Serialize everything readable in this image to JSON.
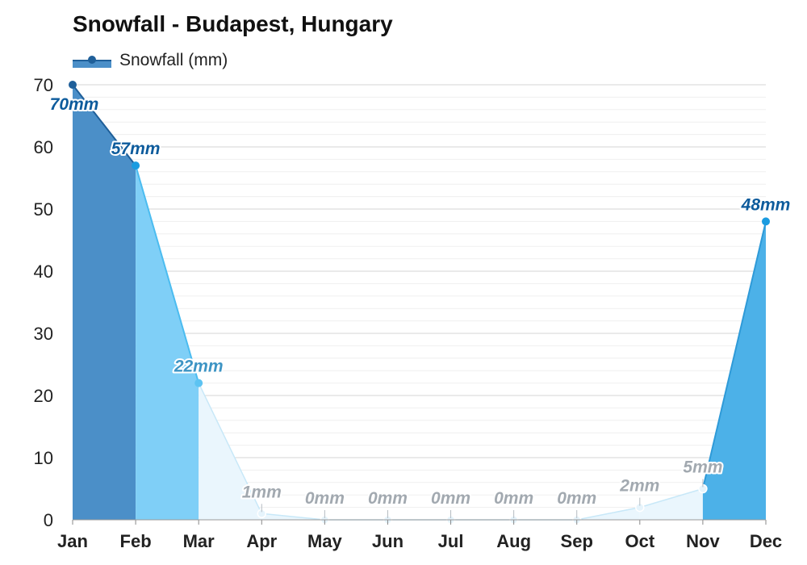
{
  "chart_data": {
    "type": "area",
    "title": "Snowfall - Budapest, Hungary",
    "categories": [
      "Jan",
      "Feb",
      "Mar",
      "Apr",
      "May",
      "Jun",
      "Jul",
      "Aug",
      "Sep",
      "Oct",
      "Nov",
      "Dec"
    ],
    "series": [
      {
        "name": "Snowfall (mm)",
        "values": [
          70,
          57,
          22,
          1,
          0,
          0,
          0,
          0,
          0,
          2,
          5,
          48
        ],
        "labels": [
          "70mm",
          "57mm",
          "22mm",
          "1mm",
          "0mm",
          "0mm",
          "0mm",
          "0mm",
          "0mm",
          "2mm",
          "5mm",
          "48mm"
        ]
      }
    ],
    "ylim": [
      0,
      70
    ],
    "yticks": [
      "0",
      "10",
      "20",
      "30",
      "40",
      "50",
      "60",
      "70"
    ],
    "xlabel": "",
    "ylabel": "",
    "grid": true,
    "legend_position": "top-left",
    "colors": {
      "jan": "#4b8fc8",
      "feb": "#7fcff7",
      "mar": "#eaf6fd",
      "dec": "#4cb1e8",
      "line_dark": "#1f5f99",
      "line_light": "#c8e8f8",
      "grid": "#e3e3e3"
    }
  }
}
